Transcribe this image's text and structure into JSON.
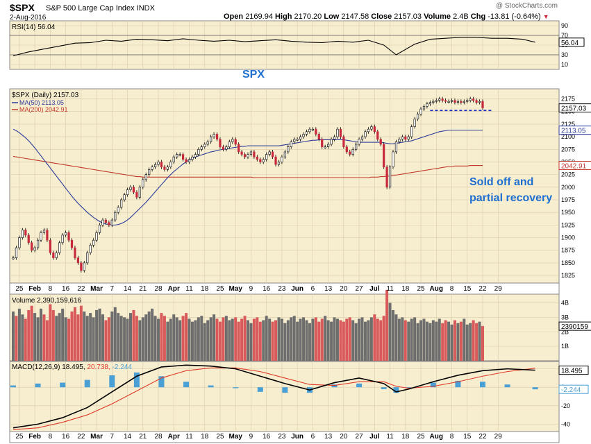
{
  "header": {
    "symbol": "$SPX",
    "name": "S&P 500 Large Cap Index  INDX",
    "date": "2-Aug-2016",
    "watermark": "@ StockCharts.com",
    "open_label": "Open",
    "open": "2169.94",
    "high_label": "High",
    "high": "2170.20",
    "low_label": "Low",
    "low": "2147.58",
    "close_label": "Close",
    "close": "2157.03",
    "volume_label": "Volume",
    "volume": "2.4B",
    "chg_label": "Chg",
    "chg": "-13.81 (-0.64%)"
  },
  "annotations": {
    "spx": "SPX",
    "note_line1": "Sold off and",
    "note_line2": "partial recovery"
  },
  "colors": {
    "price_bg": "#f7edcf",
    "up_candle": "#ffffff",
    "down_candle": "#c8283c",
    "ma50": "#2b3a9a",
    "ma200": "#c0392b",
    "vol_up": "#6e6e6e",
    "vol_down": "#d85a5a",
    "macd_line": "#000000",
    "signal_line": "#e03a2a",
    "histogram": "#4a9fd4",
    "annotation": "#1e6fd0"
  },
  "chart_data": [
    {
      "type": "line",
      "panel": "rsi",
      "legend": "RSI(14) 56.04",
      "yticks": [
        90,
        70,
        50,
        30,
        10
      ],
      "ylim": [
        0,
        100
      ],
      "levels": [
        70,
        30
      ],
      "last_label": "56.04",
      "series": [
        {
          "name": "RSI(14)",
          "x": [
            0,
            5,
            10,
            15,
            20,
            25,
            30,
            35,
            40,
            45,
            50,
            55,
            60,
            65,
            70,
            75,
            80,
            85,
            90,
            95,
            100,
            105,
            110,
            115,
            120,
            124,
            130,
            135,
            140,
            145,
            150,
            155,
            160,
            165,
            169
          ],
          "values": [
            28,
            36,
            42,
            48,
            54,
            55,
            60,
            58,
            62,
            61,
            59,
            63,
            60,
            58,
            60,
            57,
            59,
            61,
            58,
            56,
            55,
            58,
            56,
            60,
            50,
            30,
            52,
            62,
            64,
            66,
            66,
            64,
            64,
            62,
            56
          ]
        }
      ]
    },
    {
      "type": "candlestick",
      "panel": "price",
      "legend": [
        "$SPX (Daily) 2157.03",
        "MA(50) 2113.05",
        "MA(200) 2042.91"
      ],
      "ylim": [
        1810,
        2195
      ],
      "yticks": [
        2175,
        2150,
        2125,
        2100,
        2075,
        2050,
        2025,
        2000,
        1975,
        1950,
        1925,
        1900,
        1875,
        1850,
        1825
      ],
      "last_labels": {
        "close": "2157.03",
        "ma50": "2113.05",
        "ma200": "2042.91"
      },
      "support_line": 2152,
      "closes": [
        1860,
        1880,
        1900,
        1915,
        1905,
        1890,
        1875,
        1880,
        1895,
        1910,
        1915,
        1895,
        1870,
        1860,
        1870,
        1890,
        1905,
        1910,
        1895,
        1880,
        1860,
        1850,
        1835,
        1850,
        1870,
        1885,
        1895,
        1910,
        1925,
        1935,
        1930,
        1925,
        1935,
        1950,
        1960,
        1975,
        1985,
        1995,
        2000,
        1990,
        1980,
        2000,
        2015,
        2025,
        2035,
        2040,
        2045,
        2050,
        2040,
        2035,
        2040,
        2050,
        2060,
        2065,
        2065,
        2055,
        2050,
        2055,
        2060,
        2065,
        2075,
        2080,
        2085,
        2090,
        2100,
        2105,
        2095,
        2080,
        2075,
        2080,
        2090,
        2095,
        2085,
        2070,
        2065,
        2060,
        2065,
        2070,
        2060,
        2055,
        2050,
        2055,
        2065,
        2070,
        2060,
        2045,
        2050,
        2060,
        2070,
        2080,
        2090,
        2095,
        2095,
        2100,
        2105,
        2110,
        2115,
        2115,
        2105,
        2095,
        2080,
        2080,
        2085,
        2095,
        2100,
        2115,
        2100,
        2080,
        2070,
        2065,
        2075,
        2085,
        2095,
        2100,
        2110,
        2115,
        2120,
        2110,
        2095,
        2085,
        2040,
        2000,
        2040,
        2070,
        2090,
        2095,
        2100,
        2095,
        2100,
        2120,
        2135,
        2145,
        2155,
        2160,
        2165,
        2168,
        2170,
        2172,
        2175,
        2172,
        2170,
        2170,
        2172,
        2168,
        2170,
        2168,
        2170,
        2172,
        2175,
        2172,
        2168,
        2170,
        2157
      ],
      "ma50": [
        2115,
        2112,
        2108,
        2103,
        2098,
        2092,
        2085,
        2078,
        2070,
        2062,
        2054,
        2046,
        2038,
        2030,
        2022,
        2014,
        2006,
        1998,
        1990,
        1982,
        1975,
        1968,
        1962,
        1956,
        1950,
        1945,
        1940,
        1936,
        1932,
        1929,
        1927,
        1926,
        1925,
        1925,
        1926,
        1928,
        1931,
        1935,
        1940,
        1946,
        1952,
        1958,
        1964,
        1970,
        1977,
        1984,
        1991,
        1998,
        2005,
        2012,
        2019,
        2025,
        2031,
        2036,
        2041,
        2046,
        2050,
        2054,
        2057,
        2060,
        2062,
        2064,
        2066,
        2068,
        2070,
        2071,
        2073,
        2074,
        2075,
        2076,
        2077,
        2078,
        2079,
        2080,
        2081,
        2081,
        2082,
        2082,
        2082,
        2082,
        2082,
        2082,
        2082,
        2082,
        2082,
        2082,
        2082,
        2083,
        2084,
        2085,
        2086,
        2087,
        2088,
        2089,
        2090,
        2091,
        2092,
        2093,
        2093,
        2094,
        2094,
        2094,
        2094,
        2094,
        2094,
        2094,
        2094,
        2094,
        2093,
        2092,
        2091,
        2090,
        2089,
        2089,
        2089,
        2089,
        2089,
        2089,
        2089,
        2089,
        2088,
        2087,
        2086,
        2086,
        2087,
        2088,
        2089,
        2090,
        2091,
        2092,
        2094,
        2096,
        2098,
        2100,
        2102,
        2104,
        2106,
        2108,
        2110,
        2111,
        2112,
        2113,
        2113,
        2113,
        2113,
        2113,
        2113,
        2113,
        2113,
        2113,
        2113,
        2113,
        2113
      ],
      "ma200": [
        2061,
        2060,
        2059,
        2058,
        2057,
        2056,
        2055,
        2054,
        2053,
        2052,
        2051,
        2050,
        2049,
        2048,
        2047,
        2046,
        2045,
        2044,
        2043,
        2042,
        2041,
        2040,
        2039,
        2038,
        2037,
        2036,
        2035,
        2034,
        2033,
        2032,
        2031,
        2030,
        2029,
        2028,
        2027,
        2026,
        2025,
        2024,
        2023,
        2022,
        2021,
        2021,
        2020,
        2020,
        2020,
        2020,
        2020,
        2020,
        2020,
        2020,
        2020,
        2020,
        2020,
        2020,
        2020,
        2020,
        2020,
        2020,
        2020,
        2020,
        2020,
        2020,
        2020,
        2020,
        2020,
        2020,
        2020,
        2020,
        2020,
        2020,
        2020,
        2020,
        2020,
        2020,
        2020,
        2020,
        2020,
        2020,
        2019,
        2019,
        2019,
        2019,
        2019,
        2019,
        2019,
        2019,
        2019,
        2019,
        2019,
        2019,
        2019,
        2019,
        2019,
        2019,
        2019,
        2019,
        2019,
        2019,
        2019,
        2019,
        2019,
        2019,
        2019,
        2019,
        2019,
        2019,
        2019,
        2019,
        2019,
        2019,
        2019,
        2019,
        2019,
        2019,
        2019,
        2019,
        2020,
        2020,
        2020,
        2021,
        2021,
        2022,
        2022,
        2023,
        2024,
        2025,
        2026,
        2027,
        2028,
        2029,
        2030,
        2031,
        2032,
        2033,
        2034,
        2035,
        2036,
        2037,
        2038,
        2039,
        2040,
        2041,
        2041,
        2042,
        2042,
        2042,
        2042,
        2042,
        2043,
        2043,
        2043,
        2043,
        2043
      ]
    },
    {
      "type": "bar",
      "panel": "volume",
      "legend": "Volume 2,390,159,616",
      "ylim": [
        0,
        4.6
      ],
      "yticks": [
        4,
        3,
        2,
        1
      ],
      "ytick_labels": [
        "4B",
        "3B",
        "2B",
        "1B"
      ],
      "last_label": "2390159",
      "unit": "B",
      "values": [
        3.4,
        3.1,
        3.6,
        3.2,
        2.9,
        3.5,
        3.8,
        3.3,
        3.0,
        3.6,
        3.2,
        2.8,
        3.9,
        3.5,
        3.1,
        3.3,
        3.6,
        3.0,
        2.9,
        3.4,
        3.7,
        3.2,
        3.8,
        3.4,
        3.1,
        3.3,
        3.0,
        3.5,
        3.6,
        3.2,
        2.8,
        3.0,
        3.4,
        3.7,
        3.3,
        3.1,
        3.0,
        2.9,
        3.3,
        3.5,
        3.1,
        2.8,
        3.0,
        3.2,
        3.4,
        3.6,
        3.1,
        2.9,
        3.3,
        3.1,
        2.7,
        2.9,
        3.2,
        3.0,
        2.8,
        3.1,
        3.3,
        2.9,
        2.7,
        2.8,
        3.0,
        3.1,
        2.6,
        2.8,
        3.0,
        3.2,
        2.9,
        2.7,
        3.0,
        3.1,
        2.8,
        2.9,
        3.0,
        2.7,
        2.9,
        3.1,
        2.8,
        2.6,
        2.9,
        3.0,
        2.7,
        2.8,
        3.1,
        2.9,
        2.7,
        2.8,
        3.0,
        2.9,
        2.6,
        2.8,
        3.0,
        3.1,
        2.7,
        2.9,
        3.0,
        2.8,
        2.6,
        2.9,
        3.0,
        2.7,
        2.9,
        3.1,
        2.8,
        2.7,
        3.0,
        2.9,
        2.8,
        2.7,
        2.9,
        3.0,
        2.8,
        2.6,
        2.9,
        3.0,
        2.7,
        2.8,
        3.0,
        3.2,
        2.9,
        2.8,
        3.1,
        4.9,
        4.0,
        3.5,
        3.2,
        2.9,
        3.0,
        2.8,
        2.7,
        2.9,
        3.0,
        2.6,
        2.8,
        2.9,
        2.7,
        2.6,
        2.8,
        2.7,
        2.9,
        2.6,
        2.8,
        2.7,
        2.5,
        2.8,
        2.6,
        2.7,
        2.9,
        2.5,
        2.6,
        2.8,
        2.6,
        2.7,
        2.4
      ],
      "down": [
        0,
        1,
        0,
        0,
        1,
        1,
        1,
        0,
        0,
        0,
        1,
        1,
        1,
        1,
        0,
        0,
        0,
        0,
        1,
        1,
        1,
        1,
        1,
        0,
        0,
        0,
        0,
        0,
        0,
        0,
        1,
        1,
        0,
        0,
        0,
        0,
        0,
        0,
        0,
        1,
        1,
        0,
        0,
        0,
        0,
        0,
        0,
        0,
        1,
        1,
        0,
        0,
        0,
        0,
        0,
        1,
        1,
        0,
        0,
        0,
        0,
        0,
        0,
        0,
        0,
        0,
        1,
        1,
        1,
        0,
        0,
        0,
        1,
        1,
        1,
        1,
        0,
        0,
        1,
        1,
        1,
        0,
        0,
        0,
        1,
        1,
        0,
        0,
        0,
        0,
        0,
        0,
        0,
        0,
        0,
        0,
        0,
        0,
        1,
        1,
        1,
        0,
        0,
        0,
        0,
        0,
        1,
        1,
        1,
        1,
        0,
        0,
        0,
        0,
        0,
        0,
        0,
        1,
        1,
        1,
        1,
        1,
        0,
        0,
        0,
        0,
        0,
        1,
        0,
        0,
        0,
        0,
        0,
        0,
        0,
        0,
        0,
        0,
        0,
        1,
        1,
        0,
        0,
        1,
        0,
        1,
        0,
        0,
        0,
        1,
        1,
        0,
        1
      ]
    },
    {
      "type": "line",
      "panel": "macd",
      "legend": {
        "name": "MACD(12,26,9)",
        "macd": "18.495",
        "signal": "20.738",
        "hist": "-2.244"
      },
      "ylim": [
        -48,
        28
      ],
      "yticks": [
        20,
        0,
        -20,
        -40
      ],
      "last_labels": {
        "macd": "18.495",
        "hist": "-2.244"
      },
      "x": [
        0,
        8,
        16,
        24,
        32,
        40,
        48,
        56,
        64,
        72,
        80,
        88,
        96,
        104,
        112,
        120,
        124,
        128,
        136,
        144,
        152,
        160,
        169
      ],
      "series": [
        {
          "name": "MACD",
          "values": [
            -44,
            -40,
            -33,
            -22,
            -5,
            12,
            22,
            24,
            23,
            20,
            12,
            4,
            -3,
            5,
            10,
            4,
            -5,
            -2,
            6,
            13,
            18,
            20,
            18.5
          ]
        },
        {
          "name": "Signal",
          "values": [
            -46,
            -44,
            -38,
            -30,
            -18,
            -4,
            10,
            18,
            21,
            21,
            17,
            10,
            3,
            2,
            6,
            6,
            1,
            -1,
            1,
            6,
            12,
            17,
            20.7
          ]
        }
      ],
      "histogram": [
        2,
        4,
        5,
        8,
        13,
        16,
        12,
        6,
        2,
        -1,
        -5,
        -6,
        -6,
        3,
        4,
        -2,
        -6,
        -1,
        5,
        7,
        6,
        3,
        -2.2
      ]
    }
  ],
  "x_axis": {
    "labels": [
      {
        "t": "25",
        "i": 2
      },
      {
        "t": "Feb",
        "i": 7
      },
      {
        "t": "8",
        "i": 12
      },
      {
        "t": "16",
        "i": 17
      },
      {
        "t": "22",
        "i": 22
      },
      {
        "t": "Mar",
        "i": 27
      },
      {
        "t": "7",
        "i": 32
      },
      {
        "t": "14",
        "i": 37
      },
      {
        "t": "21",
        "i": 42
      },
      {
        "t": "28",
        "i": 47
      },
      {
        "t": "Apr",
        "i": 52
      },
      {
        "t": "11",
        "i": 57
      },
      {
        "t": "18",
        "i": 62
      },
      {
        "t": "25",
        "i": 67
      },
      {
        "t": "May",
        "i": 72
      },
      {
        "t": "9",
        "i": 77
      },
      {
        "t": "16",
        "i": 82
      },
      {
        "t": "23",
        "i": 87
      },
      {
        "t": "Jun",
        "i": 92
      },
      {
        "t": "6",
        "i": 97
      },
      {
        "t": "13",
        "i": 102
      },
      {
        "t": "20",
        "i": 107
      },
      {
        "t": "27",
        "i": 112
      },
      {
        "t": "Jul",
        "i": 117
      },
      {
        "t": "11",
        "i": 122
      },
      {
        "t": "18",
        "i": 127
      },
      {
        "t": "25",
        "i": 132
      },
      {
        "t": "Aug",
        "i": 137
      },
      {
        "t": "8",
        "i": 142
      },
      {
        "t": "15",
        "i": 147
      },
      {
        "t": "22",
        "i": 152
      },
      {
        "t": "29",
        "i": 157
      }
    ]
  }
}
